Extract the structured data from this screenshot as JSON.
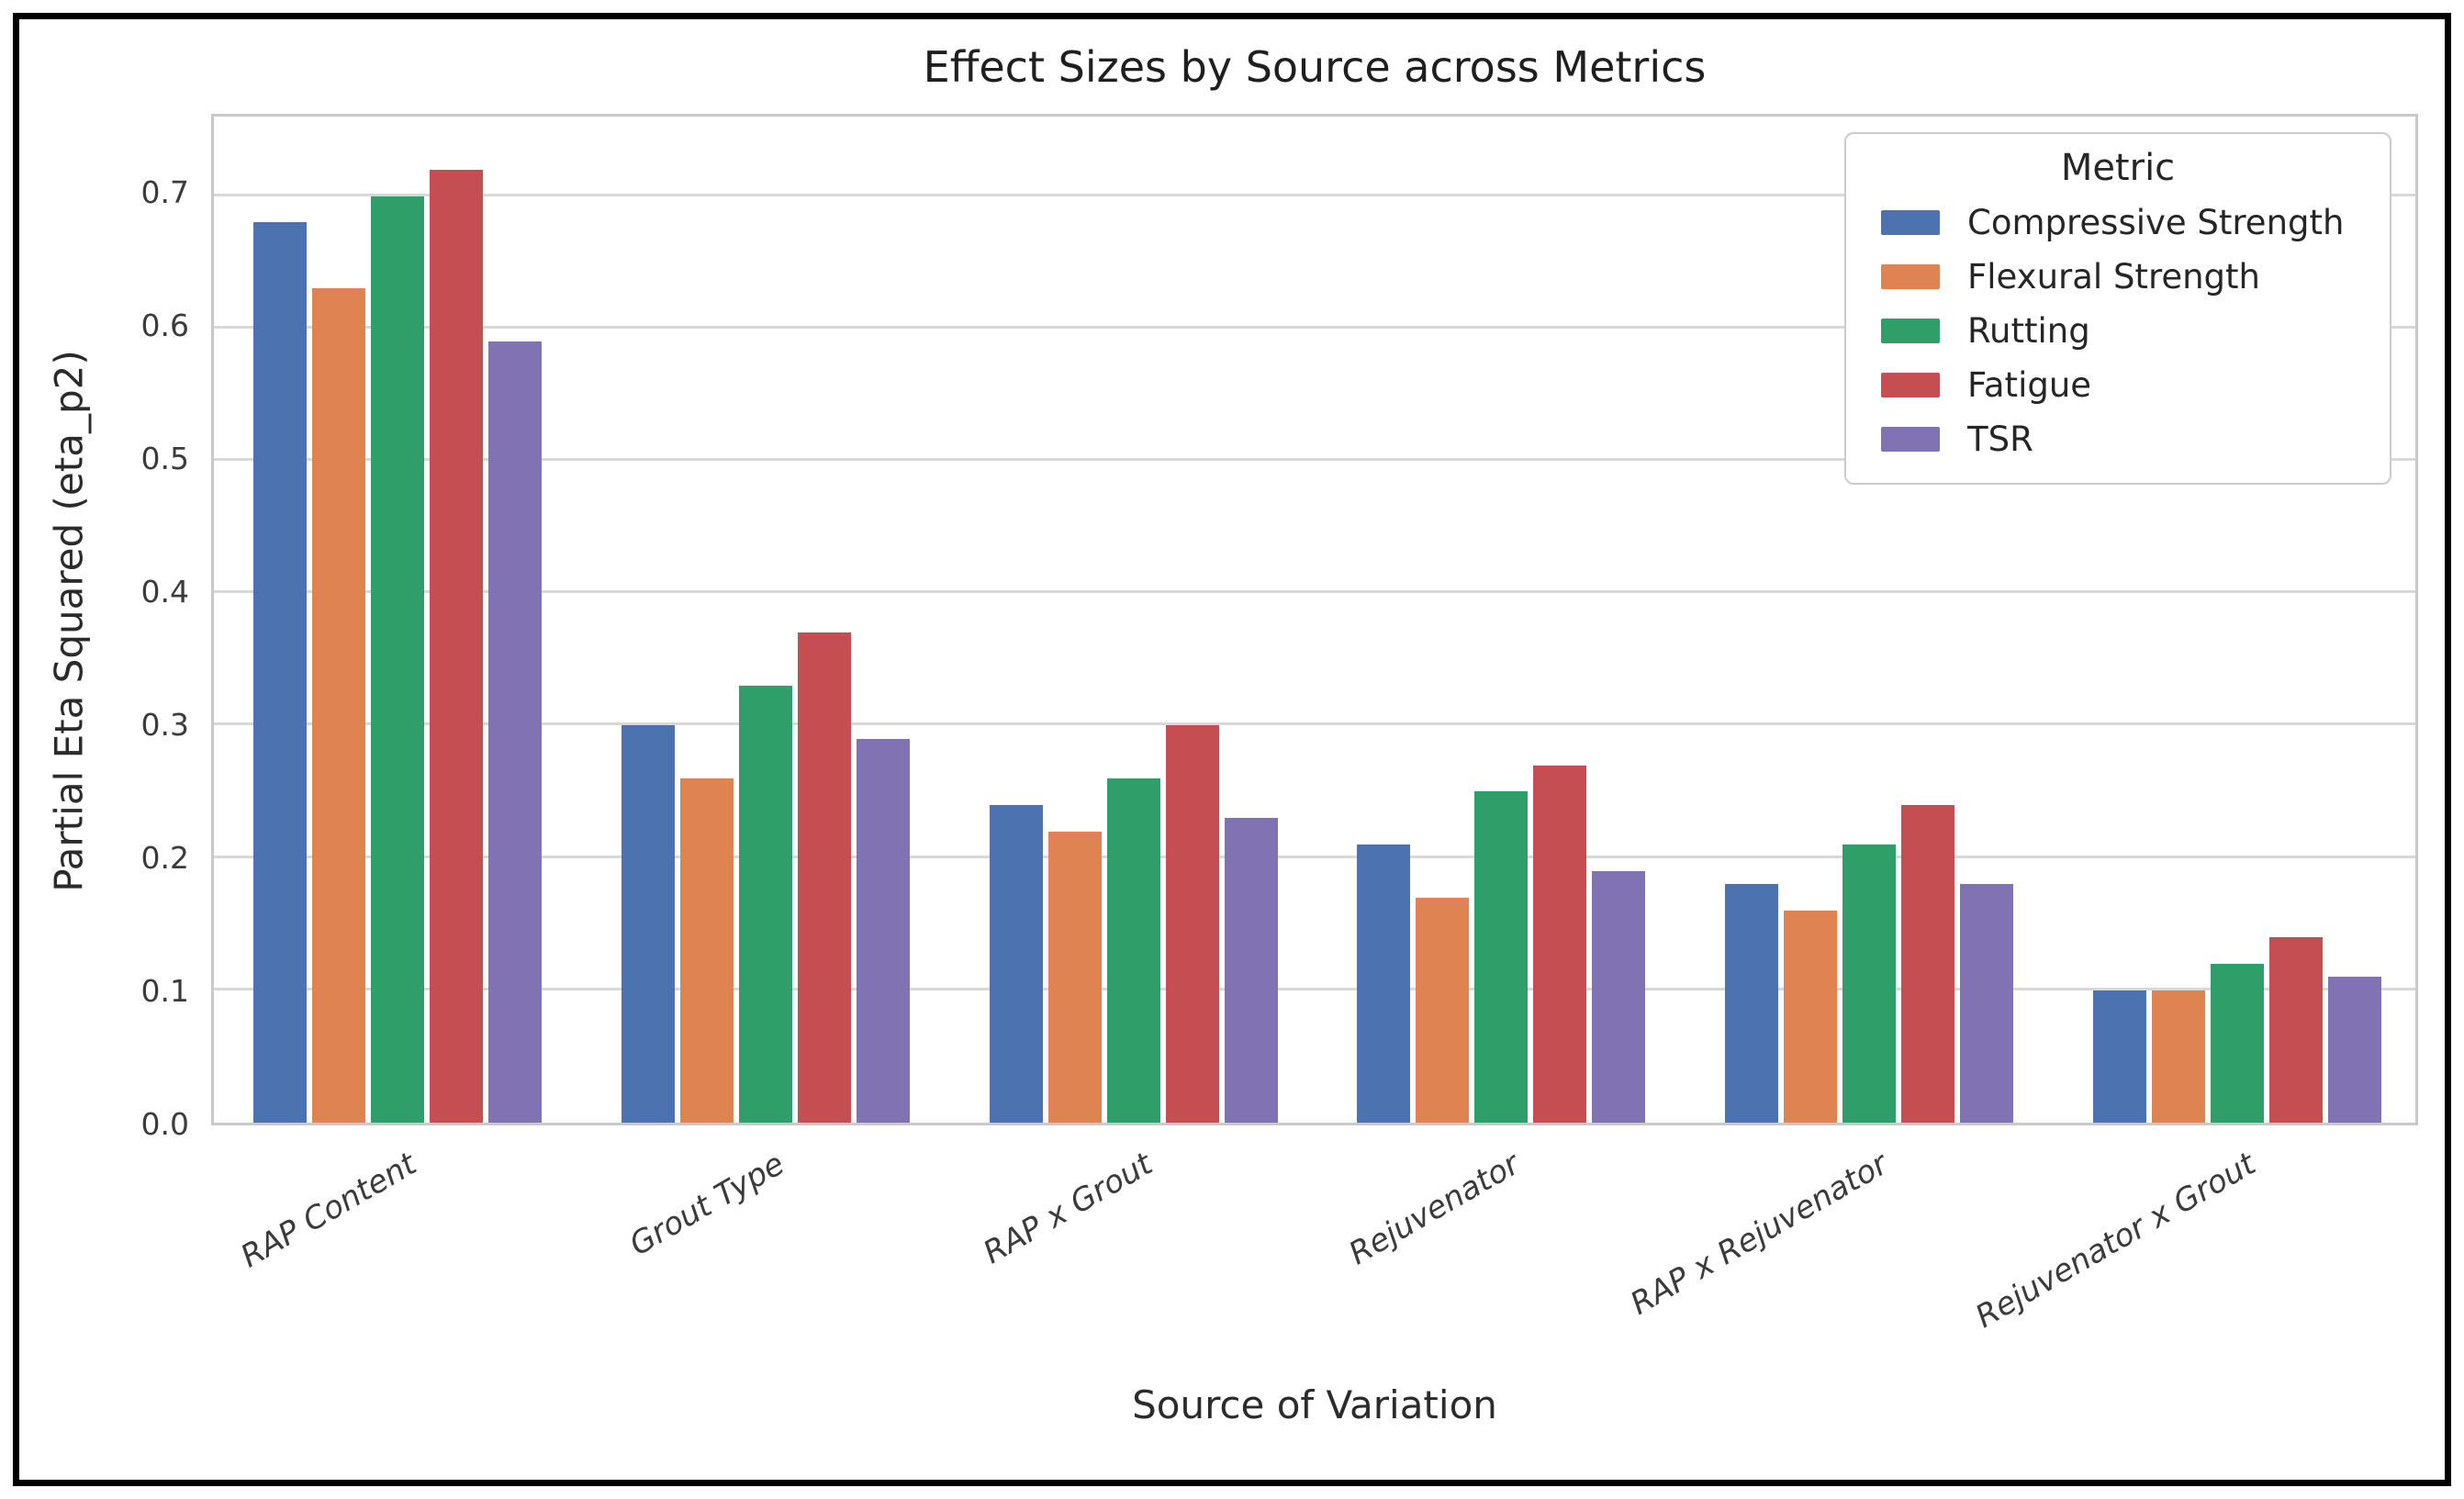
{
  "chart_data": {
    "type": "bar",
    "title": "Effect Sizes by Source across Metrics",
    "xlabel": "Source of Variation",
    "ylabel": "Partial Eta Squared (eta_p2)",
    "ylim": [
      0,
      0.76
    ],
    "y_ticks": [
      0.0,
      0.1,
      0.2,
      0.3,
      0.4,
      0.5,
      0.6,
      0.7
    ],
    "grid": true,
    "legend_title": "Metric",
    "legend_position": "upper right",
    "categories": [
      "RAP Content",
      "Grout Type",
      "RAP x Grout",
      "Rejuvenator",
      "RAP x Rejuvenator",
      "Rejuvenator x Grout"
    ],
    "series": [
      {
        "name": "Compressive Strength",
        "color": "#4C72B0",
        "values": [
          0.68,
          0.3,
          0.24,
          0.21,
          0.18,
          0.1
        ]
      },
      {
        "name": "Flexural Strength",
        "color": "#DD8452",
        "values": [
          0.63,
          0.26,
          0.22,
          0.17,
          0.16,
          0.1
        ]
      },
      {
        "name": "Rutting",
        "color": "#2F9E68",
        "values": [
          0.7,
          0.33,
          0.26,
          0.25,
          0.21,
          0.12
        ]
      },
      {
        "name": "Fatigue",
        "color": "#C44E52",
        "values": [
          0.72,
          0.37,
          0.3,
          0.27,
          0.24,
          0.14
        ]
      },
      {
        "name": "TSR",
        "color": "#8172B3",
        "values": [
          0.59,
          0.29,
          0.23,
          0.19,
          0.18,
          0.11
        ]
      }
    ]
  }
}
